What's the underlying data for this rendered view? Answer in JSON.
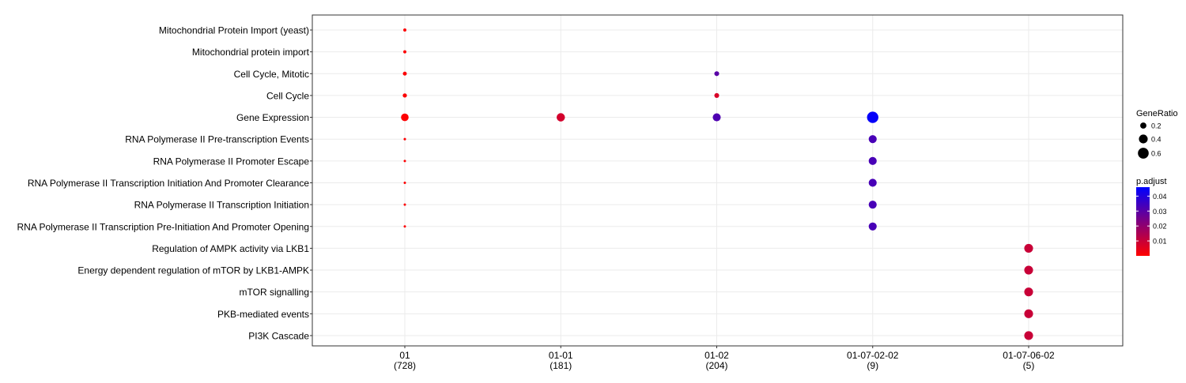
{
  "chart_data": {
    "type": "dotplot",
    "title": "",
    "xlabel": "",
    "ylabel": "",
    "grid": true,
    "categories": [
      {
        "label": "01",
        "count": "(728)"
      },
      {
        "label": "01-01",
        "count": "(181)"
      },
      {
        "label": "01-02",
        "count": "(204)"
      },
      {
        "label": "01-07-02-02",
        "count": "(9)"
      },
      {
        "label": "01-07-06-02",
        "count": "(5)"
      }
    ],
    "terms": [
      "Mitochondrial Protein Import (yeast)",
      "Mitochondrial protein import",
      "Cell Cycle, Mitotic",
      "Cell Cycle",
      "Gene Expression",
      "RNA Polymerase II Pre-transcription Events",
      "RNA Polymerase II Promoter Escape",
      "RNA Polymerase II Transcription Initiation And Promoter Clearance",
      "RNA Polymerase II Transcription Initiation",
      "RNA Polymerase II Transcription Pre-Initiation And Promoter Opening",
      "Regulation of AMPK activity via LKB1",
      "Energy dependent regulation of mTOR by LKB1-AMPK",
      "mTOR signalling",
      "PKB-mediated events",
      "PI3K Cascade"
    ],
    "points": [
      {
        "category": "01",
        "term": "Mitochondrial Protein Import (yeast)",
        "gene_ratio": 0.05,
        "p_adjust": 0.0003
      },
      {
        "category": "01",
        "term": "Mitochondrial protein import",
        "gene_ratio": 0.05,
        "p_adjust": 0.0003
      },
      {
        "category": "01",
        "term": "Cell Cycle, Mitotic",
        "gene_ratio": 0.08,
        "p_adjust": 0.0005
      },
      {
        "category": "01",
        "term": "Cell Cycle",
        "gene_ratio": 0.09,
        "p_adjust": 0.0005
      },
      {
        "category": "01",
        "term": "Gene Expression",
        "gene_ratio": 0.3,
        "p_adjust": 0.0003
      },
      {
        "category": "01",
        "term": "RNA Polymerase II Pre-transcription Events",
        "gene_ratio": 0.03,
        "p_adjust": 0.0003
      },
      {
        "category": "01",
        "term": "RNA Polymerase II Promoter Escape",
        "gene_ratio": 0.02,
        "p_adjust": 0.0003
      },
      {
        "category": "01",
        "term": "RNA Polymerase II Transcription Initiation And Promoter Clearance",
        "gene_ratio": 0.02,
        "p_adjust": 0.0003
      },
      {
        "category": "01",
        "term": "RNA Polymerase II Transcription Initiation",
        "gene_ratio": 0.02,
        "p_adjust": 0.0003
      },
      {
        "category": "01",
        "term": "RNA Polymerase II Transcription Pre-Initiation And Promoter Opening",
        "gene_ratio": 0.02,
        "p_adjust": 0.0003
      },
      {
        "category": "01-01",
        "term": "Gene Expression",
        "gene_ratio": 0.36,
        "p_adjust": 0.008
      },
      {
        "category": "01-02",
        "term": "Cell Cycle, Mitotic",
        "gene_ratio": 0.12,
        "p_adjust": 0.03
      },
      {
        "category": "01-02",
        "term": "Cell Cycle",
        "gene_ratio": 0.12,
        "p_adjust": 0.007
      },
      {
        "category": "01-02",
        "term": "Gene Expression",
        "gene_ratio": 0.33,
        "p_adjust": 0.032
      },
      {
        "category": "01-07-02-02",
        "term": "Gene Expression",
        "gene_ratio": 0.67,
        "p_adjust": 0.045
      },
      {
        "category": "01-07-02-02",
        "term": "RNA Polymerase II Pre-transcription Events",
        "gene_ratio": 0.33,
        "p_adjust": 0.033
      },
      {
        "category": "01-07-02-02",
        "term": "RNA Polymerase II Promoter Escape",
        "gene_ratio": 0.33,
        "p_adjust": 0.033
      },
      {
        "category": "01-07-02-02",
        "term": "RNA Polymerase II Transcription Initiation And Promoter Clearance",
        "gene_ratio": 0.33,
        "p_adjust": 0.033
      },
      {
        "category": "01-07-02-02",
        "term": "RNA Polymerase II Transcription Initiation",
        "gene_ratio": 0.33,
        "p_adjust": 0.033
      },
      {
        "category": "01-07-02-02",
        "term": "RNA Polymerase II Transcription Pre-Initiation And Promoter Opening",
        "gene_ratio": 0.33,
        "p_adjust": 0.033
      },
      {
        "category": "01-07-06-02",
        "term": "Regulation of AMPK activity via LKB1",
        "gene_ratio": 0.4,
        "p_adjust": 0.01
      },
      {
        "category": "01-07-06-02",
        "term": "Energy dependent regulation of mTOR by LKB1-AMPK",
        "gene_ratio": 0.4,
        "p_adjust": 0.01
      },
      {
        "category": "01-07-06-02",
        "term": "mTOR signalling",
        "gene_ratio": 0.4,
        "p_adjust": 0.01
      },
      {
        "category": "01-07-06-02",
        "term": "PKB-mediated events",
        "gene_ratio": 0.4,
        "p_adjust": 0.01
      },
      {
        "category": "01-07-06-02",
        "term": "PI3K Cascade",
        "gene_ratio": 0.4,
        "p_adjust": 0.01
      }
    ],
    "size_legend": {
      "title": "GeneRatio",
      "values": [
        0.2,
        0.4,
        0.6
      ],
      "labels": [
        "0.2",
        "0.4",
        "0.6"
      ]
    },
    "color_legend": {
      "title": "p.adjust",
      "low_color": "#ff0000",
      "high_color": "#0000ff",
      "range": [
        0,
        0.046
      ],
      "ticks": [
        0.01,
        0.02,
        0.03,
        0.04
      ],
      "tick_labels": [
        "0.01",
        "0.02",
        "0.03",
        "0.04"
      ]
    }
  }
}
